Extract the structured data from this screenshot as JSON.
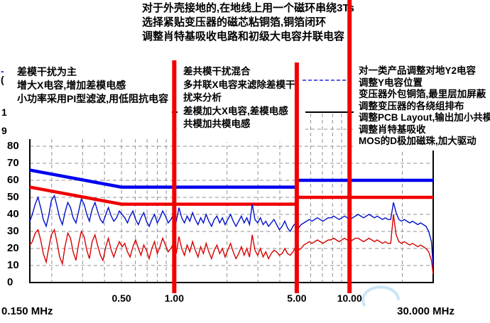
{
  "annotations": {
    "top": {
      "lines": [
        "对于外壳接地的,在地线上用一个磁环串绕3Ts",
        "选择紧贴变压器的磁芯粘铜箔,铜箔闭环",
        "调整肖特基吸收电路和初级大电容并联电容"
      ]
    },
    "left": {
      "lines": [
        "差模干扰为主",
        "增大X电容,增加差模电感",
        "小功率采用PI型滤波,用低阻抗电容"
      ]
    },
    "middle": {
      "lines": [
        "差共模干扰混合",
        "多并联X电容来滤除差模干",
        "扰来分析",
        "差模加大X电容,差模电感",
        "共模加共模电感"
      ]
    },
    "right": {
      "lines": [
        "对一类产品调整对地Y2电容",
        "调整Y电容位置",
        "变压器外包铜箔,最里层加屏蔽",
        "调整变压器的各绕组排布",
        "调整PCB Layout,输出加小共模",
        "调整肖特基吸收",
        "MOS的D极加磁珠,加大驱动"
      ]
    }
  },
  "axis_fragments": {
    "f1": "-",
    "f2": "(",
    "f3": "1",
    "f4": "9"
  },
  "colors": {
    "limit_qp": "#0000ee",
    "limit_av": "#ee0000",
    "trace_qp": "#0010cc",
    "trace_av": "#d80000",
    "marker": "#f20000",
    "grid": "#909090",
    "border": "#000000",
    "dashed_annotation": "#2222dd",
    "watermark": "#c9e6f5"
  },
  "chart_data": {
    "type": "line",
    "title": "",
    "x_axis": {
      "scale": "log",
      "unit": "MHz",
      "xlim": [
        0.15,
        30
      ],
      "start_label": "0.150 MHz",
      "end_label": "30.000 MHz",
      "ticks": [
        {
          "label": "0.50",
          "freq_mhz": 0.5
        },
        {
          "label": "1.00",
          "freq_mhz": 1.0
        },
        {
          "label": "5.00",
          "freq_mhz": 5.0
        },
        {
          "label": "10.00",
          "freq_mhz": 10.0
        }
      ],
      "gridlines_mhz": [
        0.2,
        0.3,
        0.4,
        0.5,
        0.6,
        0.7,
        0.8,
        0.9,
        1,
        2,
        3,
        4,
        5,
        6,
        7,
        8,
        9,
        10,
        20
      ]
    },
    "y_axis": {
      "ylim": [
        0,
        100
      ],
      "tick_labels": [
        0,
        10,
        20,
        30,
        40,
        50,
        60,
        70,
        80
      ],
      "grid_step": 10
    },
    "vertical_markers_mhz": [
      1.0,
      5.0,
      10.0
    ],
    "limits": [
      {
        "name": "qp-limit",
        "points": [
          [
            0.15,
            66
          ],
          [
            0.5,
            56
          ],
          [
            5,
            56
          ],
          [
            5,
            60
          ],
          [
            30,
            60
          ]
        ]
      },
      {
        "name": "av-limit",
        "points": [
          [
            0.15,
            56
          ],
          [
            0.5,
            46
          ],
          [
            5,
            46
          ],
          [
            5,
            50
          ],
          [
            30,
            50
          ]
        ]
      }
    ],
    "freq_mhz": [
      0.15,
      0.155,
      0.161,
      0.167,
      0.173,
      0.179,
      0.186,
      0.192,
      0.199,
      0.207,
      0.214,
      0.222,
      0.23,
      0.238,
      0.247,
      0.256,
      0.265,
      0.275,
      0.285,
      0.295,
      0.306,
      0.317,
      0.328,
      0.34,
      0.353,
      0.365,
      0.379,
      0.392,
      0.407,
      0.421,
      0.437,
      0.452,
      0.469,
      0.486,
      0.504,
      0.522,
      0.541,
      0.56,
      0.581,
      0.602,
      0.624,
      0.646,
      0.67,
      0.694,
      0.719,
      0.745,
      0.772,
      0.8,
      0.829,
      0.859,
      0.891,
      0.923,
      0.956,
      0.991,
      1.027,
      1.064,
      1.103,
      1.143,
      1.184,
      1.227,
      1.272,
      1.318,
      1.366,
      1.415,
      1.467,
      1.52,
      1.575,
      1.632,
      1.691,
      1.753,
      1.816,
      1.882,
      1.95,
      2.021,
      2.094,
      2.17,
      2.249,
      2.331,
      2.415,
      2.503,
      2.594,
      2.688,
      2.785,
      2.886,
      2.991,
      3.1,
      3.212,
      3.329,
      3.45,
      3.575,
      3.705,
      3.839,
      3.979,
      4.123,
      4.273,
      4.428,
      4.589,
      4.756,
      4.928,
      5.107,
      5.293,
      5.485,
      5.684,
      5.89,
      6.104,
      6.326,
      6.556,
      6.794,
      7.041,
      7.296,
      7.561,
      7.836,
      8.12,
      8.415,
      8.721,
      9.038,
      9.366,
      9.706,
      10.06,
      10.42,
      10.8,
      11.19,
      11.6,
      12.02,
      12.46,
      12.91,
      13.38,
      13.87,
      14.37,
      14.89,
      15.43,
      15.99,
      16.57,
      17.17,
      17.8,
      18.44,
      19.11,
      19.81,
      20.53,
      21.27,
      22.04,
      22.84,
      23.67,
      24.53,
      25.42,
      26.35,
      27.3,
      28.29,
      29.32,
      30.0
    ],
    "series": [
      {
        "name": "qp-trace",
        "values": [
          36,
          40,
          46,
          50,
          44,
          37,
          33,
          39,
          48,
          51,
          45,
          38,
          34,
          41,
          47,
          44,
          38,
          35,
          42,
          49,
          46,
          40,
          36,
          43,
          47,
          42,
          37,
          35,
          40,
          44,
          39,
          36,
          38,
          42,
          40,
          38,
          35,
          39,
          42,
          37,
          34,
          38,
          41,
          36,
          33,
          37,
          40,
          35,
          38,
          42,
          39,
          35,
          37,
          40,
          36,
          44,
          38,
          35,
          39,
          36,
          41,
          37,
          34,
          38,
          35,
          40,
          36,
          33,
          37,
          39,
          35,
          38,
          34,
          37,
          40,
          36,
          33,
          36,
          39,
          35,
          38,
          34,
          46,
          37,
          35,
          38,
          34,
          36,
          33,
          35,
          37,
          34,
          31,
          33,
          36,
          32,
          30,
          33,
          35,
          32,
          34,
          35,
          36,
          37,
          36,
          37,
          38,
          37,
          36,
          37,
          38,
          38,
          39,
          38,
          37,
          38,
          39,
          38,
          37,
          38,
          39,
          40,
          39,
          38,
          39,
          40,
          39,
          38,
          39,
          38,
          37,
          38,
          37,
          37,
          47,
          41,
          37,
          36,
          37,
          36,
          35,
          36,
          35,
          34,
          35,
          34,
          33,
          30,
          24,
          9
        ]
      },
      {
        "name": "av-trace",
        "values": [
          22,
          24,
          29,
          31,
          25,
          17,
          12,
          20,
          28,
          31,
          24,
          15,
          11,
          21,
          29,
          26,
          18,
          13,
          23,
          30,
          27,
          19,
          14,
          24,
          28,
          22,
          16,
          13,
          21,
          26,
          19,
          15,
          20,
          24,
          21,
          23,
          18,
          15,
          21,
          25,
          20,
          16,
          22,
          19,
          14,
          20,
          24,
          17,
          21,
          26,
          22,
          18,
          20,
          23,
          17,
          27,
          20,
          16,
          22,
          18,
          24,
          19,
          15,
          21,
          17,
          23,
          18,
          14,
          19,
          22,
          17,
          20,
          15,
          19,
          23,
          18,
          14,
          17,
          21,
          16,
          20,
          15,
          28,
          19,
          16,
          20,
          15,
          18,
          14,
          17,
          19,
          18,
          16,
          17,
          20,
          17,
          16,
          18,
          21,
          19,
          20,
          22,
          23,
          24,
          23,
          24,
          25,
          24,
          23,
          24,
          25,
          25,
          26,
          25,
          24,
          25,
          26,
          25,
          24,
          25,
          26,
          26,
          25,
          24,
          25,
          26,
          25,
          24,
          25,
          24,
          23,
          24,
          23,
          23,
          40,
          28,
          24,
          23,
          24,
          23,
          22,
          23,
          22,
          21,
          22,
          21,
          20,
          18,
          13,
          5
        ]
      }
    ]
  }
}
